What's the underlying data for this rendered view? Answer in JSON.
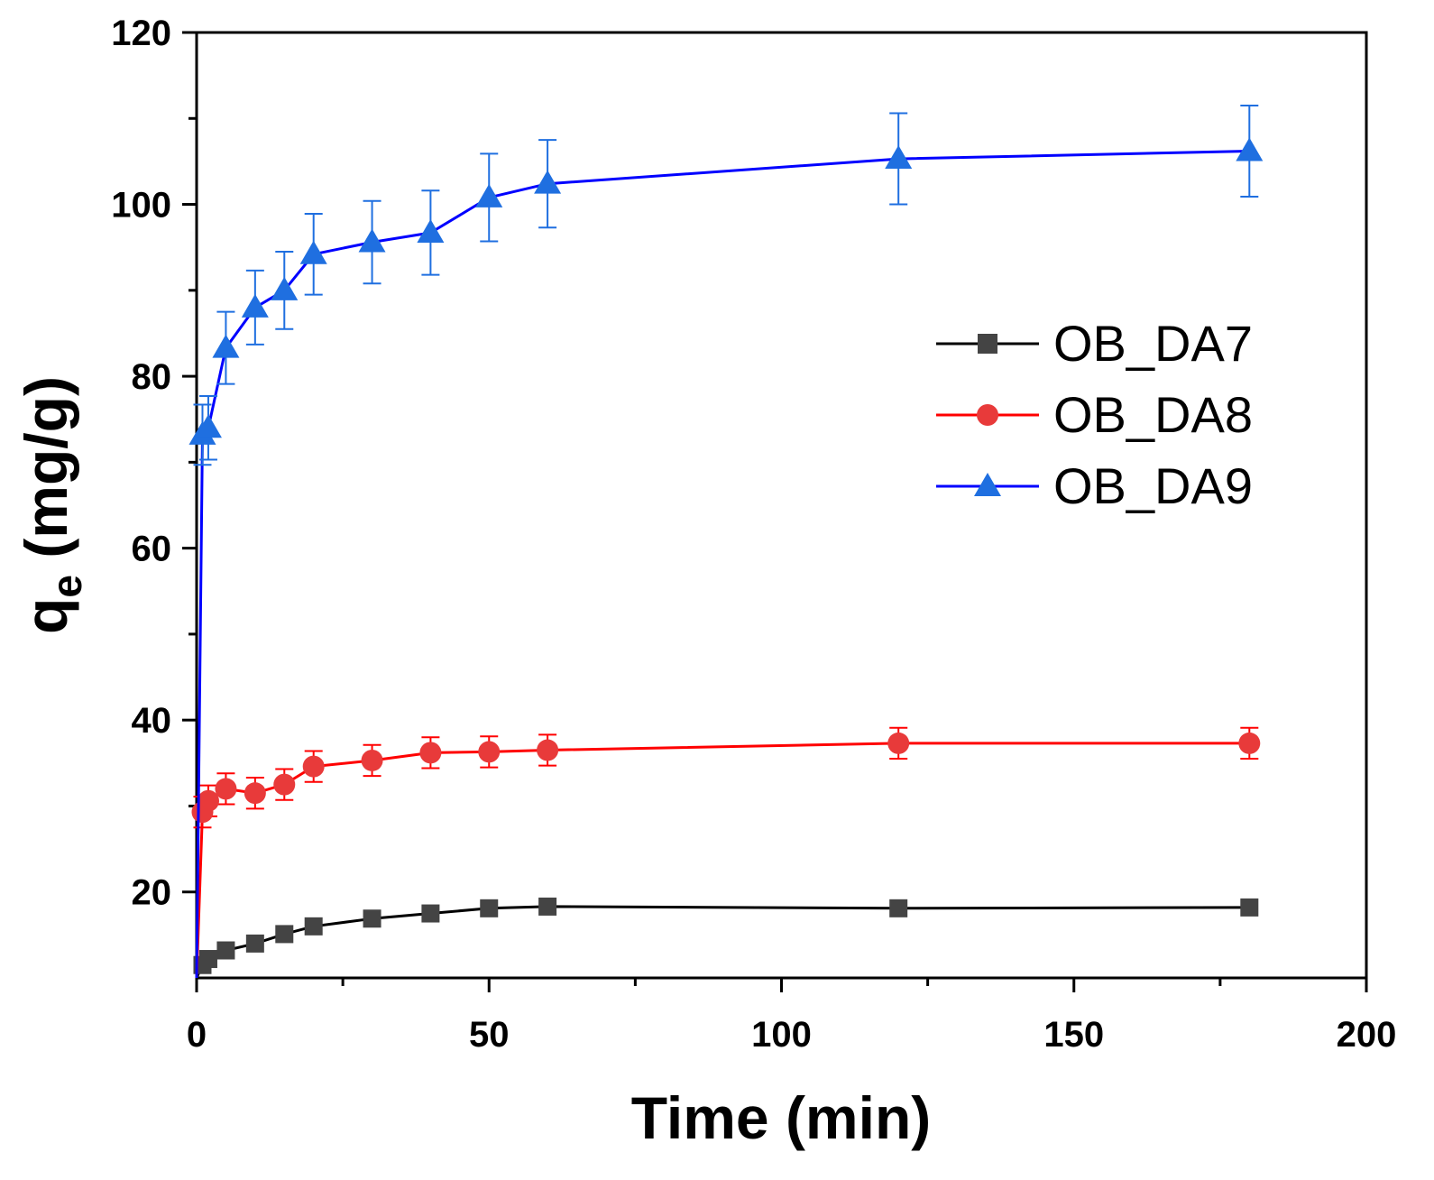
{
  "chart_data": {
    "type": "line",
    "xlabel": "Time (min)",
    "ylabel_main": "q",
    "ylabel_sub": "e",
    "ylabel_unit": "(mg/g)",
    "xlim": [
      0,
      200
    ],
    "ylim": [
      10,
      120
    ],
    "xticks": [
      0,
      50,
      100,
      150,
      200
    ],
    "xticks_minor": [
      25,
      75,
      125,
      175
    ],
    "yticks": [
      20,
      40,
      60,
      80,
      100,
      120
    ],
    "yticks_minor": [
      30,
      50,
      70,
      90,
      110
    ],
    "x": [
      0,
      1,
      2,
      5,
      10,
      15,
      20,
      30,
      40,
      50,
      60,
      120,
      180
    ],
    "series": [
      {
        "name": "OB_DA7",
        "color": "#000000",
        "marker_color": "#444444",
        "marker": "square",
        "values": [
          10,
          11.5,
          12.2,
          13.2,
          14.0,
          15.1,
          16.0,
          16.9,
          17.5,
          18.1,
          18.3,
          18.1,
          18.2
        ],
        "errors": [
          0,
          0,
          0,
          0,
          0,
          0,
          0,
          0,
          0,
          0,
          0,
          0,
          0
        ]
      },
      {
        "name": "OB_DA8",
        "color": "#ff0000",
        "marker_color": "#e83a3a",
        "marker": "circle",
        "values": [
          10,
          29.3,
          30.6,
          32.0,
          31.5,
          32.5,
          34.6,
          35.3,
          36.2,
          36.3,
          36.5,
          37.3,
          37.3
        ],
        "errors": [
          0,
          1.8,
          1.8,
          1.8,
          1.8,
          1.8,
          1.8,
          1.8,
          1.8,
          1.8,
          1.8,
          1.8,
          1.8
        ]
      },
      {
        "name": "OB_DA9",
        "color": "#0000ff",
        "marker_color": "#1f6fe0",
        "error_color": "#1f6fe0",
        "marker": "triangle",
        "values": [
          10,
          73.2,
          74.0,
          83.3,
          88.0,
          90.0,
          94.2,
          95.6,
          96.7,
          100.8,
          102.4,
          105.3,
          106.2
        ],
        "errors": [
          0,
          3.5,
          3.7,
          4.2,
          4.3,
          4.5,
          4.7,
          4.8,
          4.9,
          5.1,
          5.1,
          5.3,
          5.3
        ]
      }
    ],
    "legend_position": "center-right"
  }
}
